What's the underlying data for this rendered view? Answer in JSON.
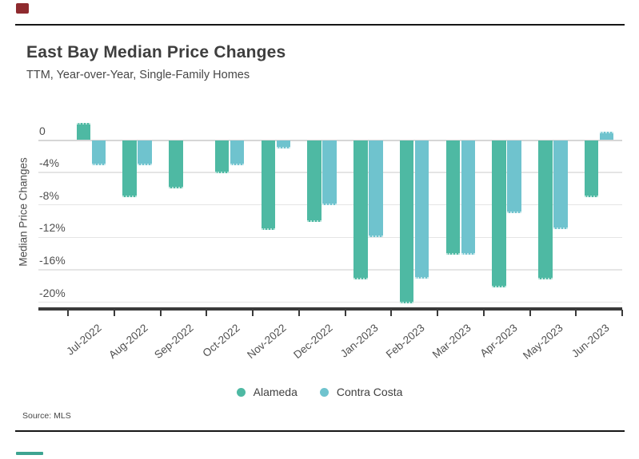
{
  "header": {
    "title": "East Bay Median Price Changes",
    "subtitle": "TTM, Year-over-Year, Single-Family Homes"
  },
  "footer": {
    "source": "Source: MLS"
  },
  "colors": {
    "alameda": "#4EB9A3",
    "contra_costa": "#6FC3CE",
    "brand_red": "#8E2A2E",
    "brand_teal": "#3DA491",
    "axis": "#3A3A3A",
    "grid": "#E5E5E5",
    "zero_line": "#D6D6D6",
    "rule": "#161616",
    "text": "#3E3E3E",
    "muted_text": "#4F4F4F"
  },
  "chart_data": {
    "type": "bar",
    "title": "East Bay Median Price Changes",
    "subtitle": "TTM, Year-over-Year, Single-Family Homes",
    "xlabel": "",
    "ylabel": "Median Price Changes",
    "unit": "%",
    "categories": [
      "Jul-2022",
      "Aug-2022",
      "Sep-2022",
      "Oct-2022",
      "Nov-2022",
      "Dec-2022",
      "Jan-2023",
      "Feb-2023",
      "Mar-2023",
      "Apr-2023",
      "May-2023",
      "Jun-2023"
    ],
    "series": [
      {
        "name": "Alameda",
        "color": "#4EB9A3",
        "values": [
          2.1,
          -7.0,
          -6.0,
          -4.1,
          -11.1,
          -10.1,
          -17.2,
          -20.1,
          -14.1,
          -18.2,
          -17.2,
          -7.0
        ]
      },
      {
        "name": "Contra Costa",
        "color": "#6FC3CE",
        "values": [
          -3.1,
          -3.1,
          null,
          -3.1,
          -1.0,
          -8.0,
          -12.0,
          -17.1,
          -14.1,
          -9.0,
          -11.0,
          1.0
        ]
      }
    ],
    "ylim": [
      -22,
      3
    ],
    "yticks": [
      {
        "value": 0,
        "label": "0"
      },
      {
        "value": -4,
        "label": "-4%"
      },
      {
        "value": -8,
        "label": "-8%"
      },
      {
        "value": -12,
        "label": "-12%"
      },
      {
        "value": -16,
        "label": "-16%"
      },
      {
        "value": -20,
        "label": "-20%"
      }
    ],
    "grid": true,
    "legend_position": "bottom",
    "legend": [
      "Alameda",
      "Contra Costa"
    ]
  }
}
